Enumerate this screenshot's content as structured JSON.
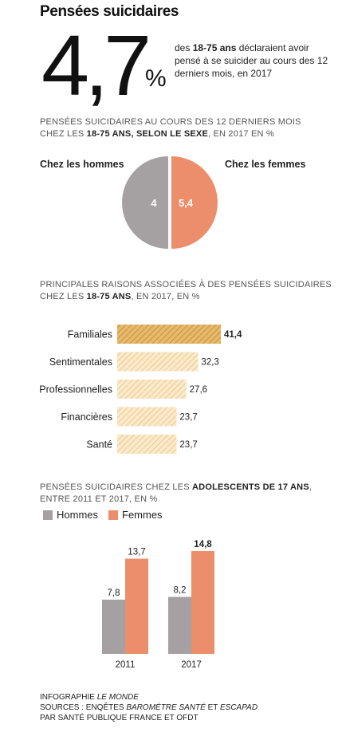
{
  "title": "Pensées suicidaires",
  "headline": {
    "value": "4,7",
    "unit": "%",
    "text_pre": "des ",
    "text_bold": "18-75 ans",
    "text_post": " déclaraient avoir pensé à se suicider au cours des 12 derniers mois, en  2017"
  },
  "colors": {
    "men": "#a5a1a2",
    "women": "#ec8e6c",
    "hatch": "#e3b463",
    "hatch_light": "#f8e3bd"
  },
  "pie_section": {
    "line1": "Pensées suicidaires au cours des 12 derniers mois",
    "line2_pre": "chez les ",
    "line2_bold": "18-75 ans, selon le sexe",
    "line2_post": ", en 2017 en %"
  },
  "bar_section": {
    "line1": "Principales raisons associées à des pensées suicidaires",
    "line2_pre": "chez les ",
    "line2_bold": "18-75 ans",
    "line2_post": ", en 2017, en %"
  },
  "teen_section": {
    "line1_pre": "Pensées suicidaires chez les ",
    "line1_bold": "adolescents de 17 ans",
    "line1_post": ",",
    "line2": "entre 2011 et 2017, en %"
  },
  "footer": {
    "line1_pre": "Infographie ",
    "line1_italic": "Le Monde",
    "line2_pre": "Sources : Enqêtes ",
    "line2_italic1": "Baromètre santé",
    "line2_mid": " et ",
    "line2_italic2": "Escapad",
    "line3": "par Santé Publique France et OFDT"
  },
  "chart_data": [
    {
      "type": "pie",
      "title": "",
      "categories": [
        "Chez les hommes",
        "Chez les femmes"
      ],
      "values": [
        4,
        5.4
      ],
      "value_labels": [
        "4",
        "5,4"
      ]
    },
    {
      "type": "bar",
      "orientation": "horizontal",
      "categories": [
        "Familiales",
        "Sentimentales",
        "Professionnelles",
        "Financières",
        "Santé"
      ],
      "values": [
        41.4,
        32.3,
        27.6,
        23.7,
        23.7
      ],
      "value_labels": [
        "41,4",
        "32,3",
        "27,6",
        "23,7",
        "23,7"
      ]
    },
    {
      "type": "bar",
      "categories": [
        "2011",
        "2017"
      ],
      "series": [
        {
          "name": "Hommes",
          "values": [
            7.8,
            8.2
          ],
          "value_labels": [
            "7,8",
            "8,2"
          ]
        },
        {
          "name": "Femmes",
          "values": [
            13.7,
            14.8
          ],
          "value_labels": [
            "13,7",
            "14,8"
          ]
        }
      ],
      "legend_position": "top-left"
    }
  ]
}
